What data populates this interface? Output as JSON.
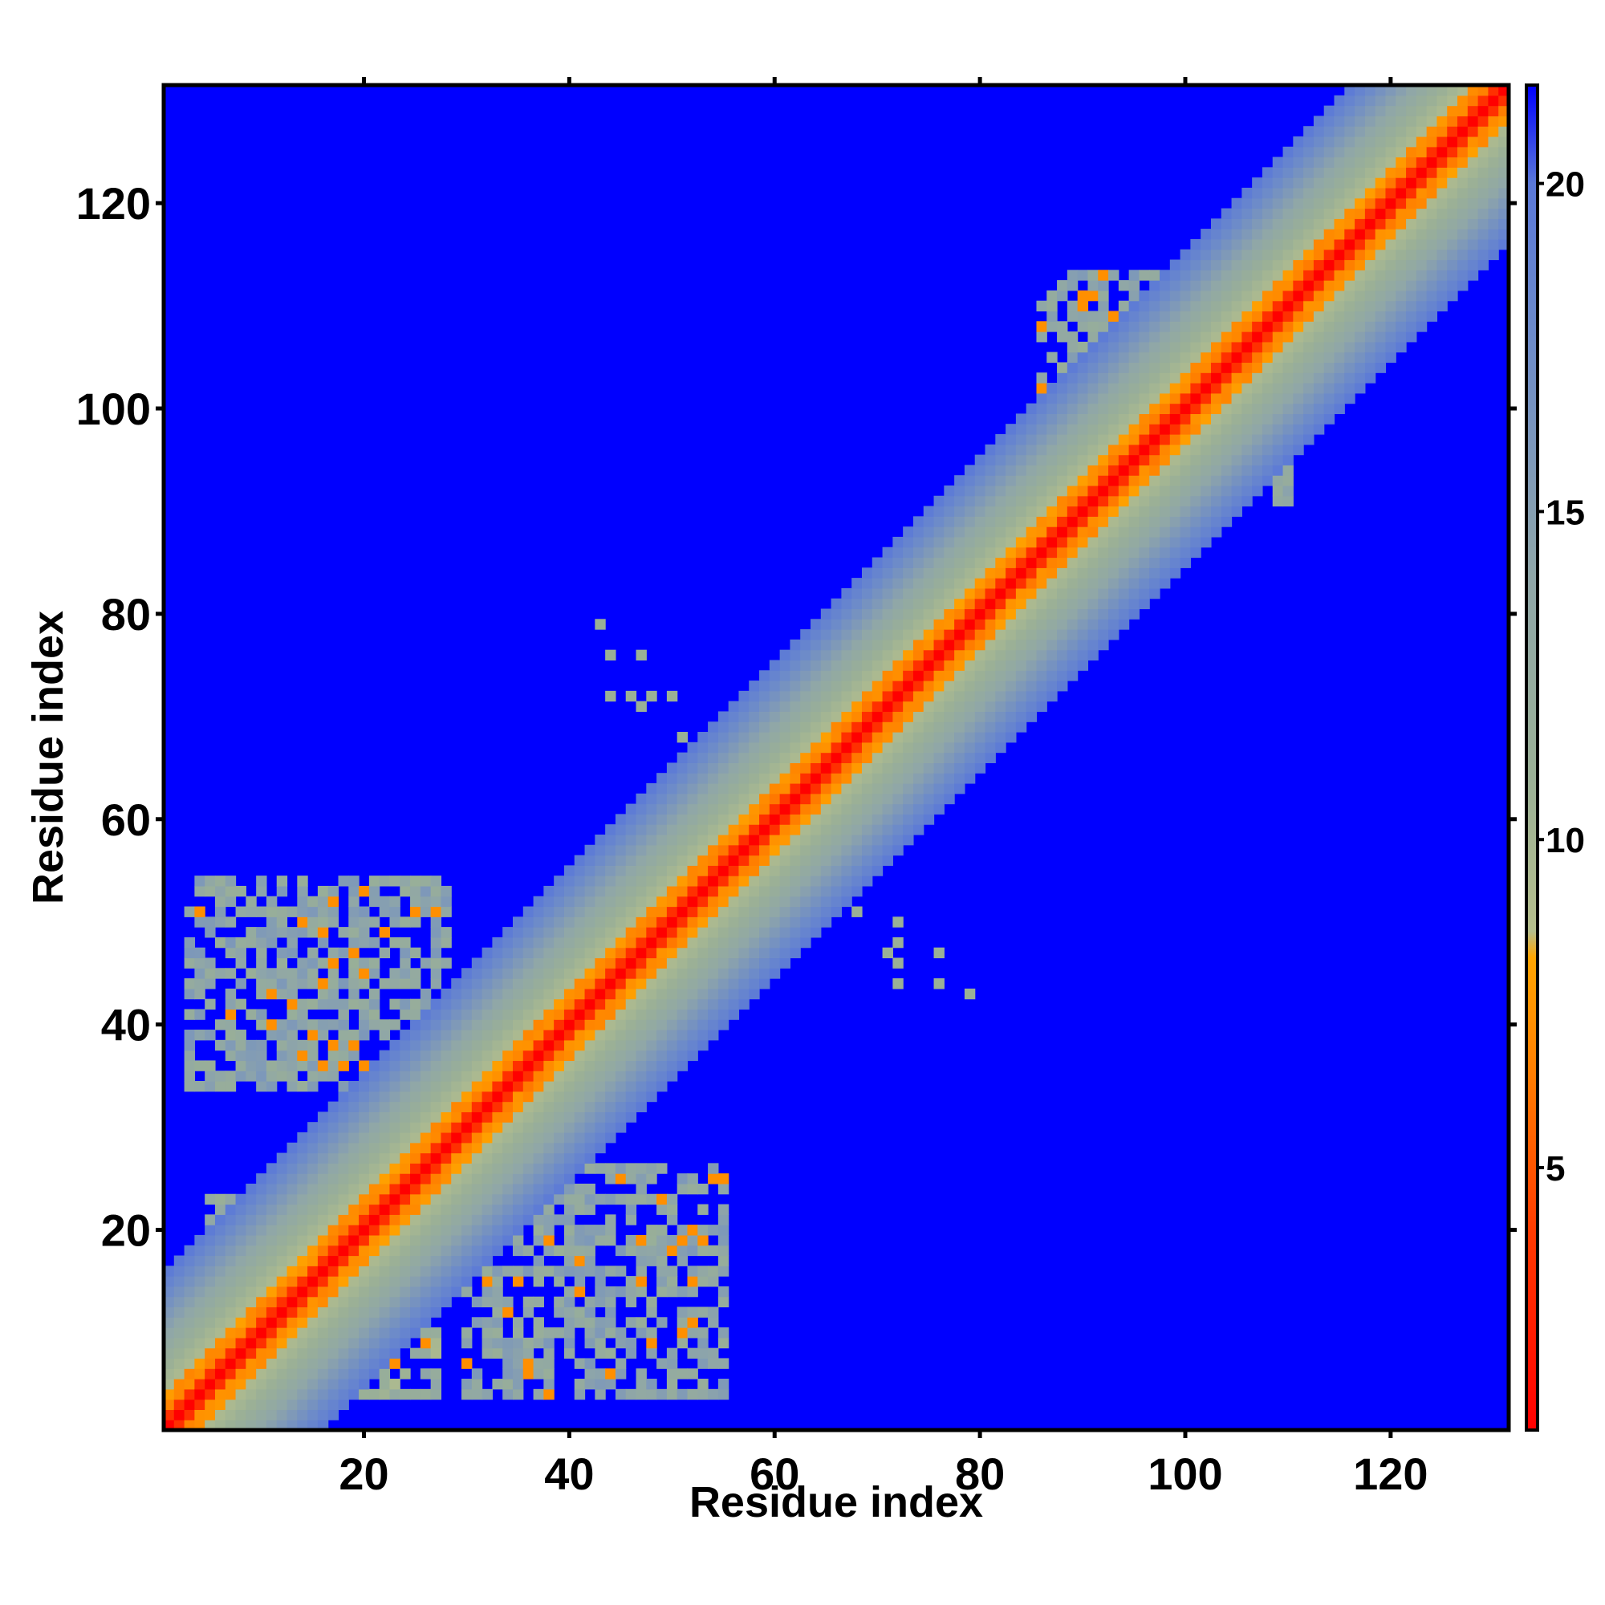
{
  "chart_data": {
    "type": "heatmap",
    "title": "",
    "xlabel": "Residue index",
    "ylabel": "Residue index",
    "n_residues": 131,
    "xlim": [
      1,
      131
    ],
    "ylim": [
      1,
      131
    ],
    "x_ticks": [
      20,
      40,
      60,
      80,
      100,
      120
    ],
    "y_ticks": [
      20,
      40,
      60,
      80,
      100,
      120
    ],
    "colorbar": {
      "range": [
        1,
        21.5
      ],
      "ticks": [
        5,
        10,
        15,
        20
      ],
      "placement": "right"
    },
    "colormap": [
      {
        "value": 1,
        "color": "#ff0000"
      },
      {
        "value": 4,
        "color": "#ff3a00"
      },
      {
        "value": 6.5,
        "color": "#ff7f00"
      },
      {
        "value": 8.2,
        "color": "#ffa500"
      },
      {
        "value": 8.6,
        "color": "#b5be8c"
      },
      {
        "value": 11,
        "color": "#9ab096"
      },
      {
        "value": 14,
        "color": "#8fa6a8"
      },
      {
        "value": 17.5,
        "color": "#6e8cc8"
      },
      {
        "value": 20,
        "color": "#5a78d8"
      },
      {
        "value": 21.5,
        "color": "#0000ff"
      }
    ],
    "background_color": "#0000ff",
    "diagonal_band": {
      "description": "distance increases with |i-j|; red on diagonal, orange near, gray-green band up to about |i-j|=15"
    },
    "contact_regions": [
      {
        "x_range": [
          3,
          28
        ],
        "y_range": [
          34,
          54
        ],
        "value": 14
      },
      {
        "x_range": [
          5,
          27
        ],
        "y_range": [
          4,
          23
        ],
        "value": 12
      },
      {
        "x_range": [
          22,
          29
        ],
        "y_range": [
          22,
          40
        ],
        "value": 13
      },
      {
        "x_range": [
          30,
          55
        ],
        "y_range": [
          4,
          26
        ],
        "value": 14
      },
      {
        "x_range": [
          26,
          38
        ],
        "y_range": [
          18,
          30
        ],
        "value": 13
      },
      {
        "x_range": [
          86,
          110
        ],
        "y_range": [
          91,
          113
        ],
        "value": 14
      }
    ],
    "isolated_points": [
      {
        "x": 43,
        "y": 79
      },
      {
        "x": 44,
        "y": 76
      },
      {
        "x": 47,
        "y": 76
      },
      {
        "x": 44,
        "y": 72
      },
      {
        "x": 46,
        "y": 72
      },
      {
        "x": 47,
        "y": 71
      },
      {
        "x": 48,
        "y": 72
      },
      {
        "x": 50,
        "y": 72
      },
      {
        "x": 51,
        "y": 68
      },
      {
        "x": 68,
        "y": 51
      },
      {
        "x": 72,
        "y": 50
      },
      {
        "x": 71,
        "y": 47
      },
      {
        "x": 72,
        "y": 48
      },
      {
        "x": 72,
        "y": 46
      },
      {
        "x": 76,
        "y": 47
      },
      {
        "x": 72,
        "y": 44
      },
      {
        "x": 76,
        "y": 44
      },
      {
        "x": 79,
        "y": 43
      }
    ]
  }
}
